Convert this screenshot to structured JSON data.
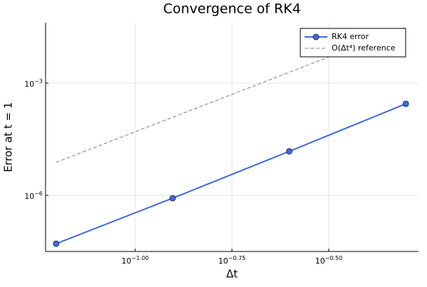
{
  "chart_data": {
    "type": "line",
    "title": "Convergence of RK4",
    "x_label": "Δt",
    "y_label": "Error at t = 1",
    "x": [
      0.0625,
      0.125,
      0.25,
      0.5
    ],
    "series": [
      {
        "name": "RK4 error",
        "color": "#4169e1",
        "values": [
          5.1e-08,
          8.4e-07,
          1.5e-05,
          0.00028
        ],
        "style": "solid",
        "markers": true
      },
      {
        "name": "O(Δt⁴) reference",
        "color": "#808080",
        "values": [
          7.63e-06,
          0.000122,
          0.00195,
          0.03125
        ],
        "style": "dashed",
        "markers": false
      }
    ],
    "x_scale": "log",
    "y_scale": "log",
    "xlim": [
      0.0587,
      0.539
    ],
    "ylim": [
      3.16e-08,
      0.0411
    ],
    "xticks": [
      {
        "value": 0.1,
        "label": "10^−1.00"
      },
      {
        "value": 0.17782794,
        "label": "10^−0.75"
      },
      {
        "value": 0.31622777,
        "label": "10^−0.50"
      }
    ],
    "yticks": [
      {
        "value": 1e-06,
        "label": "10^−6"
      },
      {
        "value": 0.001,
        "label": "10^−3"
      }
    ],
    "grid": true,
    "legend": "top-right"
  }
}
